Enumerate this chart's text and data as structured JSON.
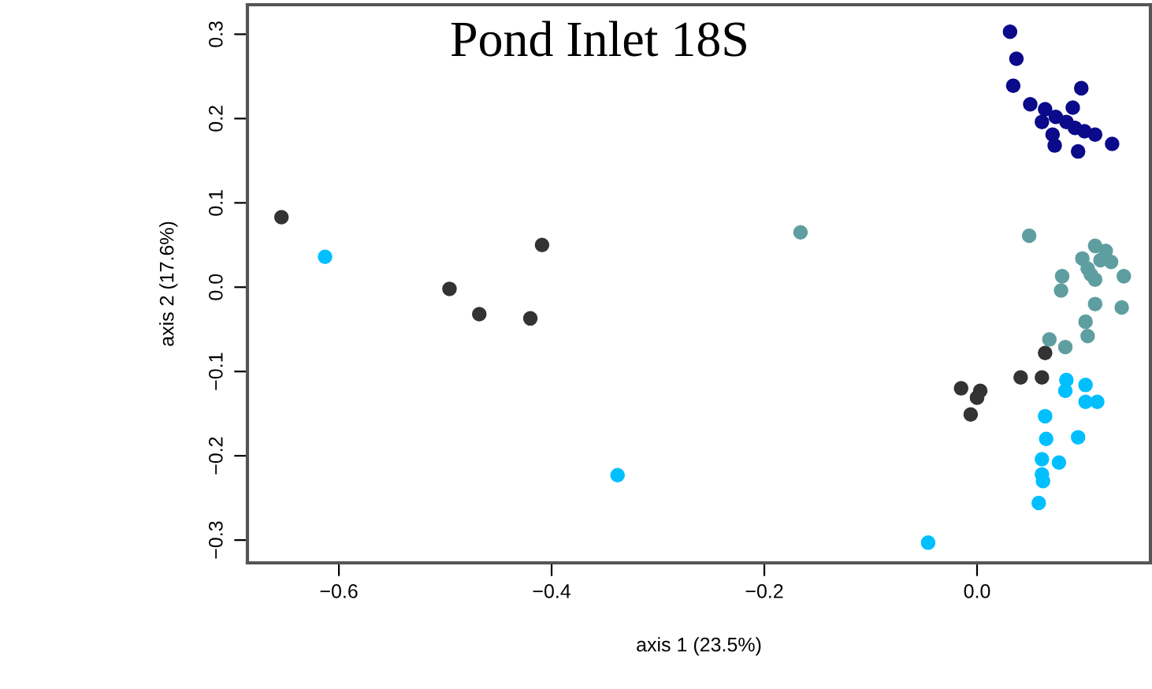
{
  "chart_data": {
    "type": "scatter",
    "title": "Pond Inlet 18S",
    "xlabel": "axis 1 (23.5%)",
    "ylabel": "axis 2 (17.6%)",
    "xlim": [
      -0.686,
      0.163
    ],
    "ylim": [
      -0.327,
      0.335
    ],
    "xticks": [
      {
        "value": -0.6,
        "label": "−0.6"
      },
      {
        "value": -0.4,
        "label": "−0.4"
      },
      {
        "value": -0.2,
        "label": "−0.2"
      },
      {
        "value": 0,
        "label": "0.0"
      }
    ],
    "yticks": [
      {
        "value": -0.3,
        "label": "−0.3"
      },
      {
        "value": -0.2,
        "label": "−0.2"
      },
      {
        "value": -0.1,
        "label": "−0.1"
      },
      {
        "value": 0,
        "label": "0.0"
      },
      {
        "value": 0.1,
        "label": "0.1"
      },
      {
        "value": 0.2,
        "label": "0.2"
      },
      {
        "value": 0.3,
        "label": "0.3"
      }
    ],
    "grid": false,
    "legend": false,
    "marker": "circle",
    "series": [
      {
        "color": "#333333",
        "x": [
          -0.654,
          -0.409,
          -0.496,
          -0.468,
          -0.42,
          -0.015,
          0.003,
          0.0,
          -0.006,
          0.041,
          0.061,
          0.064
        ],
        "values": [
          0.083,
          0.05,
          -0.002,
          -0.032,
          -0.037,
          -0.12,
          -0.123,
          -0.131,
          -0.151,
          -0.107,
          -0.107,
          -0.078
        ]
      },
      {
        "color": "#00bfff",
        "x": [
          -0.613,
          -0.338,
          0.084,
          0.083,
          0.102,
          0.102,
          0.113,
          0.064,
          0.065,
          0.095,
          0.061,
          0.077,
          0.061,
          0.062,
          0.058,
          -0.046
        ],
        "values": [
          0.036,
          -0.223,
          -0.11,
          -0.123,
          -0.116,
          -0.136,
          -0.136,
          -0.153,
          -0.18,
          -0.178,
          -0.204,
          -0.208,
          -0.222,
          -0.23,
          -0.256,
          -0.303
        ]
      },
      {
        "color": "#5f9ea0",
        "x": [
          -0.166,
          0.068,
          0.083,
          0.102,
          0.104,
          0.111,
          0.136,
          0.049,
          0.111,
          0.121,
          0.099,
          0.116,
          0.126,
          0.104,
          0.08,
          0.107,
          0.138,
          0.079,
          0.111
        ],
        "values": [
          0.065,
          -0.062,
          -0.071,
          -0.041,
          -0.058,
          -0.02,
          -0.024,
          0.061,
          0.049,
          0.043,
          0.034,
          0.032,
          0.03,
          0.022,
          0.013,
          0.015,
          0.013,
          -0.004,
          0.009
        ]
      },
      {
        "color": "#0a0a8a",
        "x": [
          0.031,
          0.037,
          0.034,
          0.098,
          0.05,
          0.064,
          0.09,
          0.074,
          0.061,
          0.084,
          0.092,
          0.101,
          0.111,
          0.071,
          0.073,
          0.095,
          0.127
        ],
        "values": [
          0.303,
          0.271,
          0.239,
          0.236,
          0.217,
          0.211,
          0.213,
          0.202,
          0.196,
          0.196,
          0.189,
          0.185,
          0.181,
          0.181,
          0.168,
          0.161,
          0.17
        ]
      }
    ]
  }
}
